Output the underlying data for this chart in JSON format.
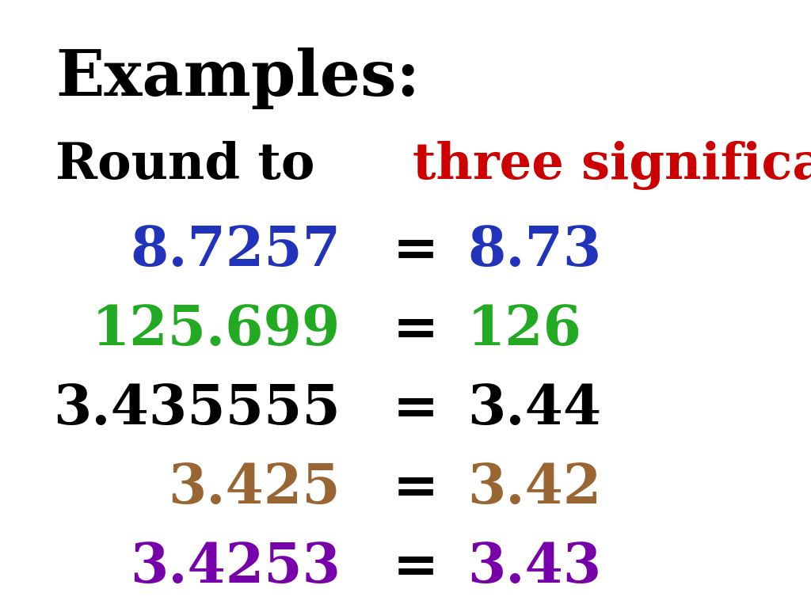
{
  "title_line1": "Examples:",
  "title_line1_color": "#000000",
  "title_line2_prefix": "Round to ",
  "title_line2_highlight": "three significant figures",
  "title_line2_suffix": ".",
  "title_line2_prefix_color": "#000000",
  "title_line2_highlight_color": "#cc0000",
  "title_line2_suffix_color": "#000000",
  "rows": [
    {
      "left": "8.7257",
      "left_color": "#2233bb",
      "eq_color": "#000000",
      "right": "8.73",
      "right_color": "#2233bb"
    },
    {
      "left": "125.699",
      "left_color": "#22aa22",
      "eq_color": "#000000",
      "right": "126",
      "right_color": "#22aa22"
    },
    {
      "left": "3.435555",
      "left_color": "#000000",
      "eq_color": "#000000",
      "right": "3.44",
      "right_color": "#000000"
    },
    {
      "left": "3.425",
      "left_color": "#996633",
      "eq_color": "#000000",
      "right": "3.42",
      "right_color": "#996633"
    },
    {
      "left": "3.4253",
      "left_color": "#7700aa",
      "eq_color": "#000000",
      "right": "3.43",
      "right_color": "#7700aa"
    }
  ],
  "background_color": "#ffffff",
  "title_fontsize": 58,
  "subtitle_fontsize": 46,
  "row_fontsize": 50,
  "font_family": "serif"
}
